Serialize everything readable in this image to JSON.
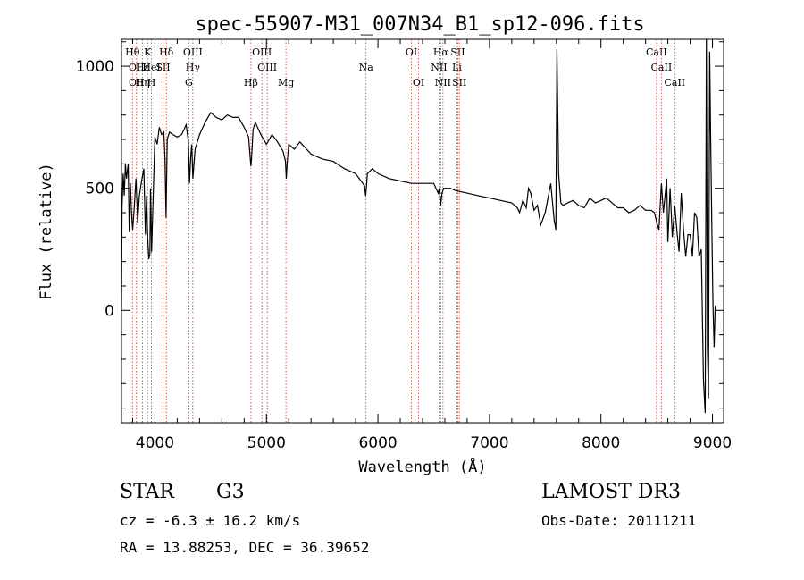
{
  "chart_data": {
    "type": "line",
    "title": "spec-55907-M31_007N34_B1_sp12-096.fits",
    "xlabel": "Wavelength (Å)",
    "ylabel": "Flux (relative)",
    "xlim": [
      3700,
      9100
    ],
    "ylim": [
      -460,
      1110
    ],
    "xticks": [
      4000,
      5000,
      6000,
      7000,
      8000,
      9000
    ],
    "yticks": [
      0,
      500,
      1000
    ],
    "series": [
      {
        "name": "spectrum",
        "x": [
          3700,
          3705,
          3715,
          3725,
          3735,
          3745,
          3760,
          3770,
          3780,
          3790,
          3800,
          3815,
          3830,
          3845,
          3860,
          3880,
          3900,
          3915,
          3925,
          3935,
          3945,
          3955,
          3960,
          3965,
          3970,
          3985,
          4000,
          4020,
          4040,
          4060,
          4080,
          4090,
          4100,
          4110,
          4130,
          4160,
          4200,
          4240,
          4280,
          4300,
          4310,
          4320,
          4330,
          4340,
          4360,
          4400,
          4450,
          4500,
          4550,
          4600,
          4650,
          4700,
          4750,
          4800,
          4840,
          4855,
          4861,
          4867,
          4880,
          4900,
          4950,
          5000,
          5050,
          5100,
          5150,
          5170,
          5178,
          5185,
          5200,
          5250,
          5300,
          5400,
          5500,
          5600,
          5700,
          5800,
          5880,
          5890,
          5896,
          5905,
          5950,
          6000,
          6100,
          6200,
          6300,
          6400,
          6500,
          6540,
          6550,
          6563,
          6575,
          6590,
          6650,
          6700,
          6800,
          6900,
          7000,
          7100,
          7200,
          7250,
          7270,
          7300,
          7330,
          7350,
          7370,
          7400,
          7430,
          7460,
          7500,
          7550,
          7580,
          7595,
          7605,
          7620,
          7640,
          7660,
          7700,
          7750,
          7800,
          7850,
          7900,
          7950,
          8000,
          8050,
          8100,
          8150,
          8200,
          8250,
          8300,
          8350,
          8400,
          8450,
          8480,
          8500,
          8520,
          8542,
          8560,
          8590,
          8600,
          8620,
          8640,
          8662,
          8680,
          8700,
          8720,
          8740,
          8760,
          8780,
          8800,
          8820,
          8840,
          8860,
          8880,
          8900,
          8920,
          8935,
          8945,
          8955,
          8965,
          8975,
          8985,
          8995,
          9005,
          9015,
          9025
        ],
        "values": [
          0,
          420,
          560,
          470,
          600,
          540,
          600,
          320,
          520,
          400,
          330,
          430,
          540,
          360,
          470,
          530,
          580,
          310,
          470,
          300,
          210,
          230,
          500,
          380,
          240,
          480,
          710,
          680,
          750,
          720,
          730,
          620,
          380,
          700,
          730,
          720,
          710,
          720,
          760,
          690,
          520,
          620,
          680,
          540,
          660,
          720,
          770,
          810,
          790,
          780,
          800,
          790,
          790,
          750,
          710,
          620,
          590,
          630,
          740,
          770,
          720,
          680,
          720,
          690,
          650,
          610,
          540,
          600,
          680,
          660,
          690,
          640,
          620,
          610,
          580,
          560,
          510,
          470,
          500,
          560,
          580,
          560,
          540,
          530,
          520,
          520,
          520,
          480,
          500,
          430,
          480,
          500,
          500,
          490,
          480,
          470,
          460,
          450,
          440,
          420,
          400,
          450,
          420,
          500,
          480,
          410,
          430,
          350,
          400,
          520,
          370,
          330,
          1070,
          560,
          440,
          430,
          440,
          450,
          430,
          420,
          460,
          440,
          450,
          460,
          440,
          420,
          420,
          400,
          410,
          430,
          410,
          410,
          400,
          360,
          330,
          520,
          400,
          540,
          280,
          500,
          300,
          430,
          330,
          240,
          480,
          330,
          220,
          310,
          310,
          220,
          400,
          380,
          220,
          250,
          -290,
          -420,
          1170,
          -150,
          -360,
          1060,
          680,
          320,
          20,
          -150,
          20
        ]
      }
    ],
    "annotations": [
      {
        "wave": 3798,
        "row": 1,
        "label": "Hθ"
      },
      {
        "wave": 3835,
        "row": 2,
        "label": "OII"
      },
      {
        "wave": 3835,
        "row": 3,
        "label": "OII"
      },
      {
        "wave": 3889,
        "row": 2,
        "label": "Hε"
      },
      {
        "wave": 3889,
        "row": 3,
        "label": "Hη"
      },
      {
        "wave": 3934,
        "row": 1,
        "label": "K"
      },
      {
        "wave": 3969,
        "row": 2,
        "label": "HeI"
      },
      {
        "wave": 3969,
        "row": 3,
        "label": "H"
      },
      {
        "wave": 4072,
        "row": 2,
        "label": "SII"
      },
      {
        "wave": 4102,
        "row": 1,
        "label": "Hδ"
      },
      {
        "wave": 4304,
        "row": 3,
        "label": "G"
      },
      {
        "wave": 4340,
        "row": 1,
        "label": "OIII"
      },
      {
        "wave": 4340,
        "row": 2,
        "label": "Hγ"
      },
      {
        "wave": 4861,
        "row": 3,
        "label": "Hβ"
      },
      {
        "wave": 4959,
        "row": 1,
        "label": "OIII"
      },
      {
        "wave": 5007,
        "row": 2,
        "label": "OIII"
      },
      {
        "wave": 5175,
        "row": 3,
        "label": "Mg"
      },
      {
        "wave": 5893,
        "row": 2,
        "label": "Na"
      },
      {
        "wave": 6300,
        "row": 1,
        "label": "OI"
      },
      {
        "wave": 6364,
        "row": 3,
        "label": "OI"
      },
      {
        "wave": 6548,
        "row": 2,
        "label": "NII"
      },
      {
        "wave": 6563,
        "row": 1,
        "label": "Hα"
      },
      {
        "wave": 6583,
        "row": 3,
        "label": "NII"
      },
      {
        "wave": 6708,
        "row": 2,
        "label": "Li"
      },
      {
        "wave": 6716,
        "row": 1,
        "label": "SII"
      },
      {
        "wave": 6730,
        "row": 3,
        "label": "SII"
      },
      {
        "wave": 8498,
        "row": 1,
        "label": "CaII"
      },
      {
        "wave": 8542,
        "row": 2,
        "label": "CaII"
      },
      {
        "wave": 8662,
        "row": 3,
        "label": "CaII"
      }
    ]
  },
  "info": {
    "class": "STAR",
    "subclass": "G3",
    "survey": "LAMOST DR3",
    "cz": "cz = -6.3 ± 16.2 km/s",
    "obs_date": "Obs-Date: 20111211",
    "coords": "RA =  13.88253, DEC =  36.39652"
  }
}
